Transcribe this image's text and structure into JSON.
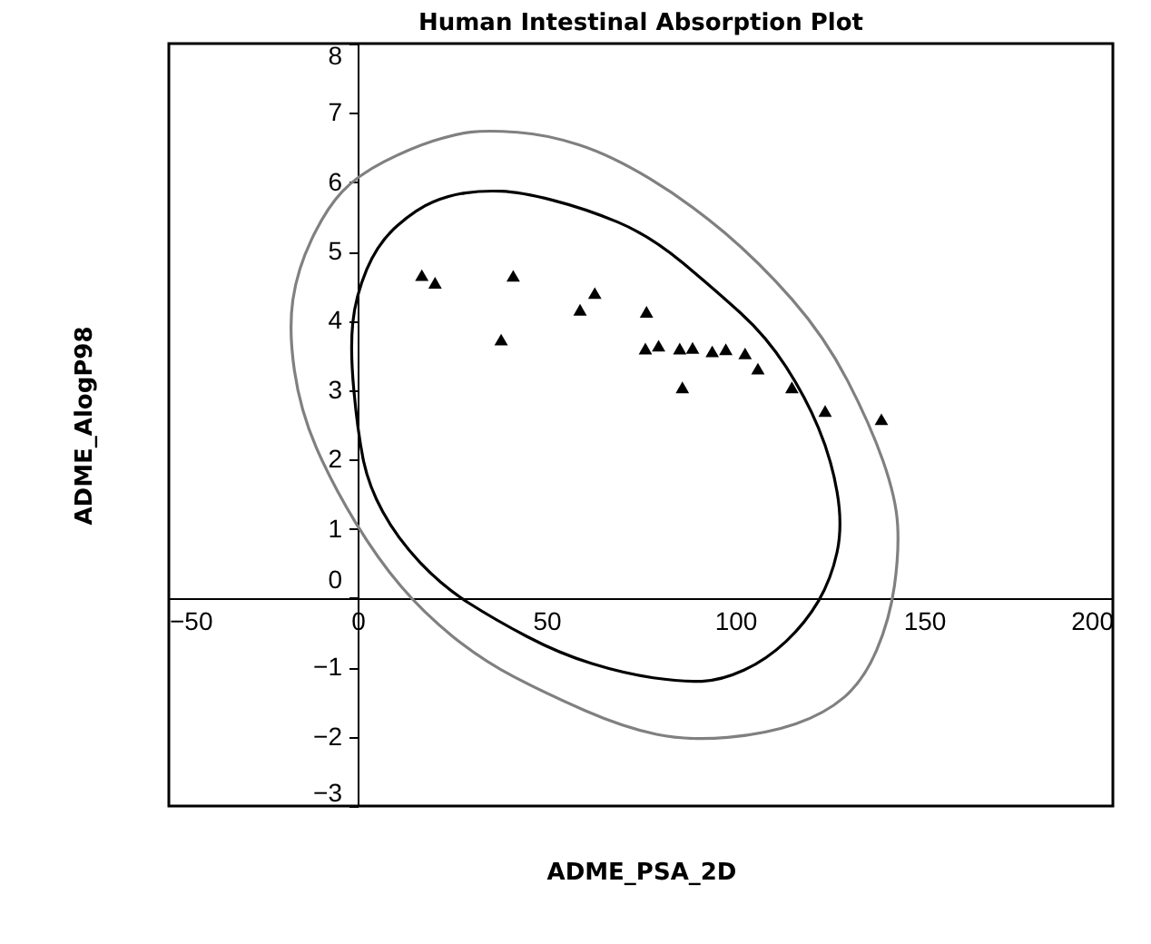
{
  "chart_data": {
    "type": "scatter",
    "title": "Human Intestinal Absorption Plot",
    "xlabel": "ADME_PSA_2D",
    "ylabel": "ADME_AlogP98",
    "xlim": [
      -50,
      200
    ],
    "xticks": [
      -50,
      0,
      50,
      100,
      150,
      200
    ],
    "ylim": [
      -3,
      8
    ],
    "yticks": [
      -3,
      -2,
      -1,
      0,
      1,
      2,
      3,
      4,
      5,
      6,
      7,
      8
    ],
    "grid": false,
    "marker": "triangle",
    "series": [
      {
        "color": "#000000",
        "x": [
          17.0,
          20.5,
          41.2,
          38.0,
          58.9,
          62.8,
          76.5,
          76.2,
          79.7,
          85.3,
          88.7,
          86.0,
          93.9,
          97.5,
          102.6,
          106.0,
          115.0,
          123.8,
          138.7
        ],
        "values": [
          4.66,
          4.55,
          4.65,
          3.73,
          4.16,
          4.4,
          4.13,
          3.6,
          3.64,
          3.6,
          3.61,
          3.04,
          3.56,
          3.59,
          3.53,
          3.31,
          3.04,
          2.7,
          2.58
        ]
      }
    ]
  }
}
